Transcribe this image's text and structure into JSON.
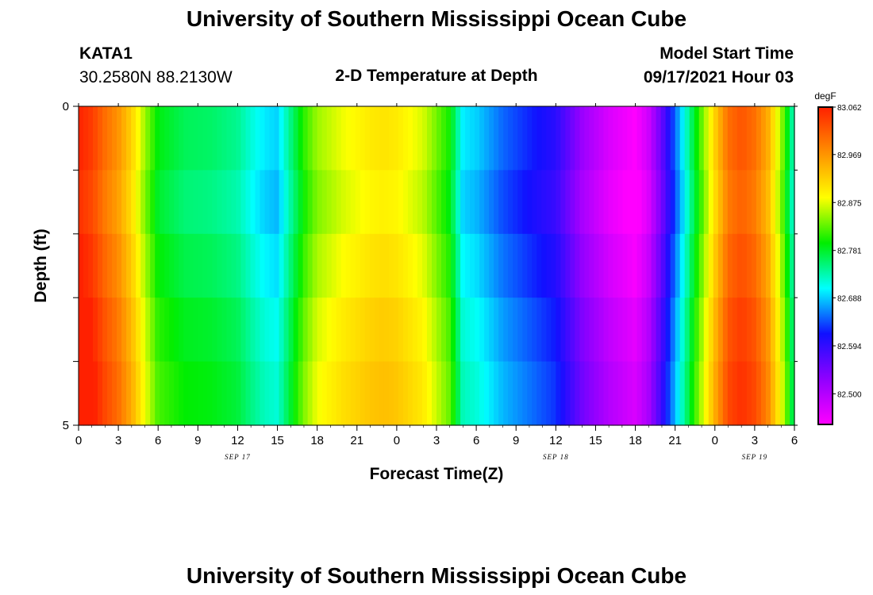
{
  "header": {
    "title": "University of Southern Mississippi Ocean Cube",
    "station_id": "KATA1",
    "station_coords": "30.2580N  88.2130W",
    "plot_title": "2-D Temperature at Depth",
    "model_start_label": "Model Start Time",
    "model_start_value": "09/17/2021 Hour 03"
  },
  "footer": {
    "title": "University of Southern Mississippi Ocean Cube"
  },
  "chart_data": {
    "type": "heatmap",
    "title": "2-D Temperature at Depth",
    "xlabel": "Forecast Time(Z)",
    "ylabel": "Depth (ft)",
    "x_tick_labels": [
      "0",
      "3",
      "6",
      "9",
      "12",
      "15",
      "18",
      "21",
      "0",
      "3",
      "6",
      "9",
      "12",
      "15",
      "18",
      "21",
      "0",
      "3",
      "6"
    ],
    "date_labels": [
      {
        "label": "SEP 17",
        "hour": 12
      },
      {
        "label": "SEP 18",
        "hour": 36
      },
      {
        "label": "SEP 19",
        "hour": 51
      }
    ],
    "x_range_hours": [
      0,
      54
    ],
    "y_tick_labels": [
      "0",
      "5"
    ],
    "ylim": [
      0,
      5
    ],
    "depth_bins": 5,
    "colorbar": {
      "unit": "degF",
      "tick_labels": [
        "83.062",
        "82.969",
        "82.875",
        "82.781",
        "82.688",
        "82.594",
        "82.500"
      ],
      "range": [
        82.44,
        83.062
      ],
      "colors": [
        "#ff00ff",
        "#9000ff",
        "#1010ff",
        "#00ffff",
        "#00ee00",
        "#ffff00",
        "#ff9000",
        "#ff2000"
      ]
    },
    "profile_hours": [
      0,
      1,
      2,
      3,
      4,
      5,
      6,
      8,
      10,
      12,
      13,
      14,
      15,
      16,
      17,
      18,
      20,
      22,
      23,
      24,
      26,
      28,
      28.5,
      29,
      30,
      32,
      36,
      38,
      40,
      42,
      43,
      44,
      45,
      46,
      47,
      48,
      49,
      50,
      51,
      52,
      53,
      54
    ],
    "profile_values": [
      83.06,
      83.04,
      83.0,
      82.97,
      82.92,
      82.85,
      82.79,
      82.765,
      82.76,
      82.745,
      82.72,
      82.7,
      82.69,
      82.75,
      82.81,
      82.85,
      82.88,
      82.9,
      82.905,
      82.9,
      82.87,
      82.8,
      82.75,
      82.7,
      82.69,
      82.65,
      82.6,
      82.52,
      82.47,
      82.44,
      82.48,
      82.56,
      82.65,
      82.74,
      82.83,
      82.92,
      83.0,
      83.02,
      83.0,
      82.95,
      82.85,
      82.72
    ],
    "row_offsets": [
      0.0,
      -0.01,
      0.005,
      0.02,
      0.03
    ]
  }
}
